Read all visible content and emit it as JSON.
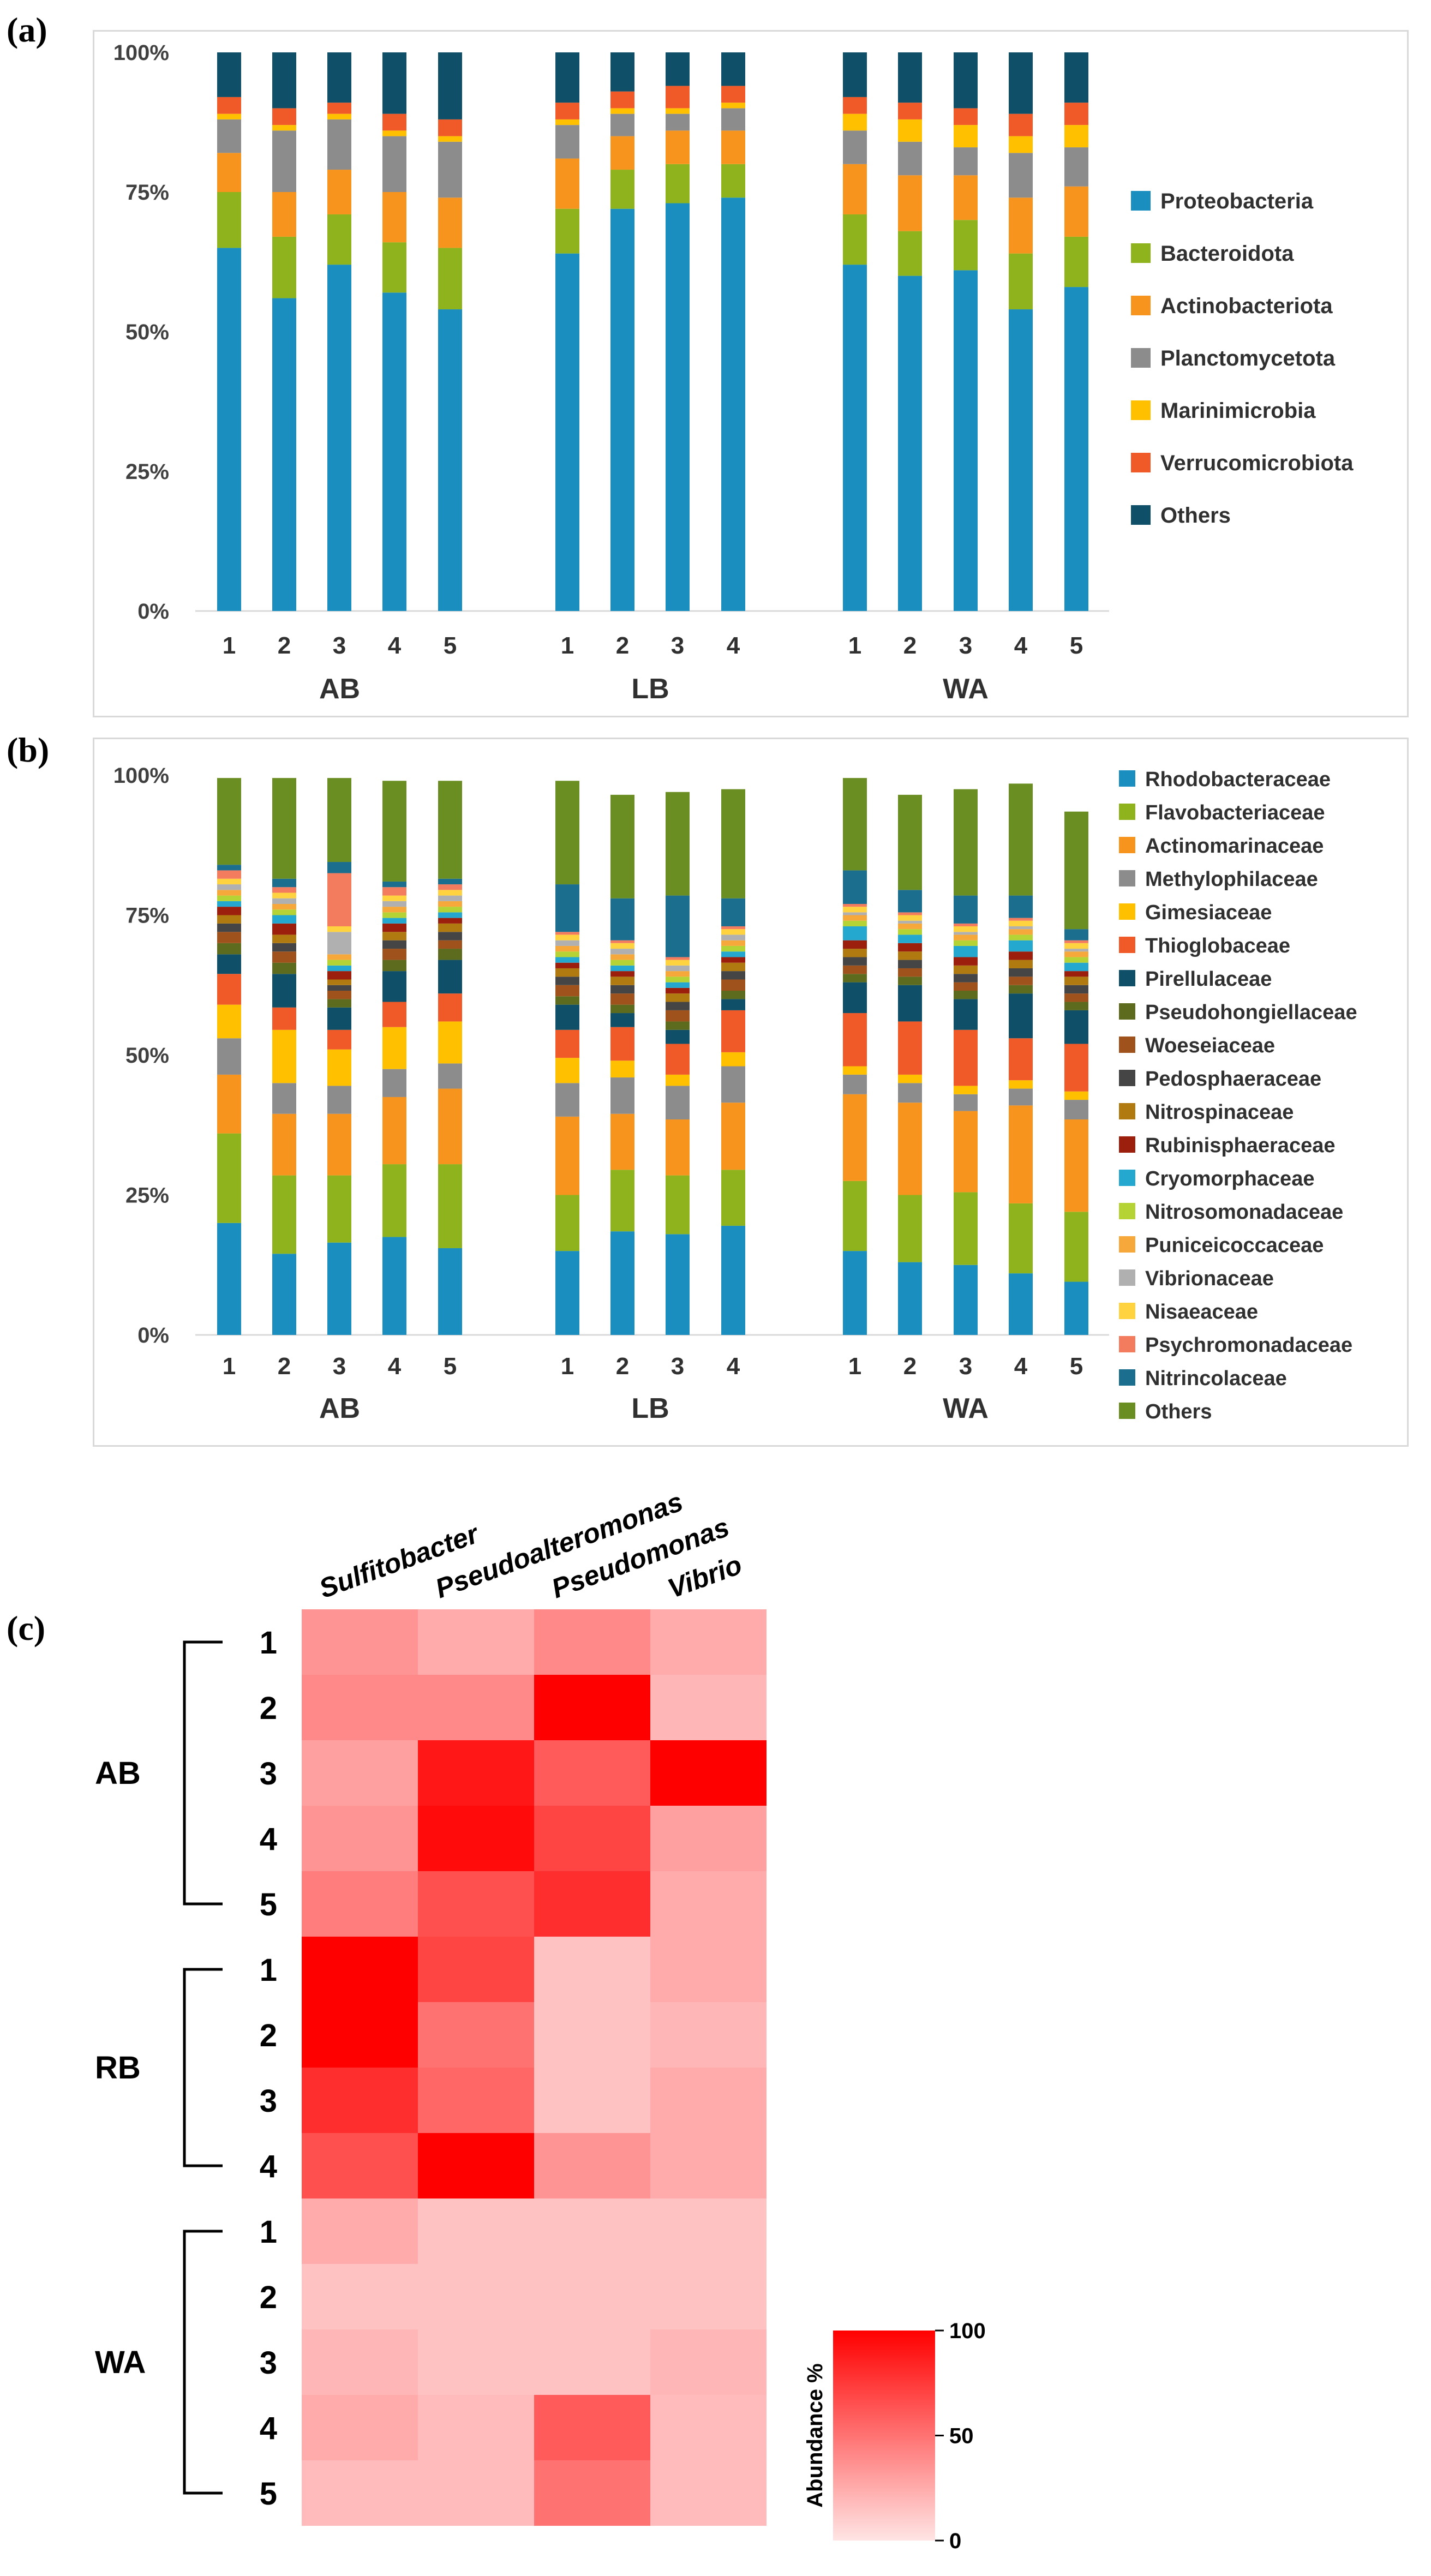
{
  "chart_data": [
    {
      "panel": "(a)",
      "type": "bar",
      "stacked": true,
      "ylim": [
        0,
        100
      ],
      "yticks": [
        "0%",
        "25%",
        "50%",
        "75%",
        "100%"
      ],
      "groups": [
        "AB",
        "LB",
        "WA"
      ],
      "categories": [
        {
          "group": "AB",
          "label": "1"
        },
        {
          "group": "AB",
          "label": "2"
        },
        {
          "group": "AB",
          "label": "3"
        },
        {
          "group": "AB",
          "label": "4"
        },
        {
          "group": "AB",
          "label": "5"
        },
        {
          "group": "LB",
          "label": "1"
        },
        {
          "group": "LB",
          "label": "2"
        },
        {
          "group": "LB",
          "label": "3"
        },
        {
          "group": "LB",
          "label": "4"
        },
        {
          "group": "WA",
          "label": "1"
        },
        {
          "group": "WA",
          "label": "2"
        },
        {
          "group": "WA",
          "label": "3"
        },
        {
          "group": "WA",
          "label": "4"
        },
        {
          "group": "WA",
          "label": "5"
        }
      ],
      "series": [
        {
          "name": "Proteobacteria",
          "color": "#1a8fbf",
          "values": [
            65,
            56,
            62,
            57,
            54,
            64,
            72,
            73,
            74,
            62,
            60,
            61,
            54,
            58
          ]
        },
        {
          "name": "Bacteroidota",
          "color": "#8fb31d",
          "values": [
            10,
            11,
            9,
            9,
            11,
            8,
            7,
            7,
            6,
            9,
            8,
            9,
            10,
            9
          ]
        },
        {
          "name": "Actinobacteriota",
          "color": "#f7941d",
          "values": [
            7,
            8,
            8,
            9,
            9,
            9,
            6,
            6,
            6,
            9,
            10,
            8,
            10,
            9
          ]
        },
        {
          "name": "Planctomycetota",
          "color": "#8c8c8c",
          "values": [
            6,
            11,
            9,
            10,
            10,
            6,
            4,
            3,
            4,
            6,
            6,
            5,
            8,
            7
          ]
        },
        {
          "name": "Marinimicrobia",
          "color": "#ffc000",
          "values": [
            1,
            1,
            1,
            1,
            1,
            1,
            1,
            1,
            1,
            3,
            4,
            4,
            3,
            4
          ]
        },
        {
          "name": "Verrucomicrobiota",
          "color": "#f05a28",
          "values": [
            3,
            3,
            2,
            3,
            3,
            3,
            3,
            4,
            3,
            3,
            3,
            3,
            4,
            4
          ]
        },
        {
          "name": "Others",
          "color": "#0f5068",
          "values": [
            8,
            10,
            9,
            11,
            12,
            9,
            7,
            6,
            6,
            8,
            9,
            10,
            11,
            9
          ]
        }
      ]
    },
    {
      "panel": "(b)",
      "type": "bar",
      "stacked": true,
      "ylim": [
        0,
        100
      ],
      "yticks": [
        "0%",
        "25%",
        "50%",
        "75%",
        "100%"
      ],
      "groups": [
        "AB",
        "LB",
        "WA"
      ],
      "categories": [
        {
          "group": "AB",
          "label": "1"
        },
        {
          "group": "AB",
          "label": "2"
        },
        {
          "group": "AB",
          "label": "3"
        },
        {
          "group": "AB",
          "label": "4"
        },
        {
          "group": "AB",
          "label": "5"
        },
        {
          "group": "LB",
          "label": "1"
        },
        {
          "group": "LB",
          "label": "2"
        },
        {
          "group": "LB",
          "label": "3"
        },
        {
          "group": "LB",
          "label": "4"
        },
        {
          "group": "WA",
          "label": "1"
        },
        {
          "group": "WA",
          "label": "2"
        },
        {
          "group": "WA",
          "label": "3"
        },
        {
          "group": "WA",
          "label": "4"
        },
        {
          "group": "WA",
          "label": "5"
        }
      ],
      "series": [
        {
          "name": "Rhodobacteraceae",
          "color": "#1a8fbf",
          "values": [
            20,
            14.5,
            16.5,
            17.5,
            15.5,
            15,
            18.5,
            18,
            19.5,
            15,
            13,
            12.5,
            11,
            9.5
          ]
        },
        {
          "name": "Flavobacteriaceae",
          "color": "#8fb31d",
          "values": [
            16,
            14,
            12,
            13,
            15,
            10,
            11,
            10.5,
            10,
            12.5,
            12,
            13,
            12.5,
            12.5
          ]
        },
        {
          "name": "Actinomarinaceae",
          "color": "#f7941d",
          "values": [
            10.5,
            11,
            11,
            12,
            13.5,
            14,
            10,
            10,
            12,
            15.5,
            16.5,
            14.5,
            17.5,
            16.5
          ]
        },
        {
          "name": "Methylophilaceae",
          "color": "#8c8c8c",
          "values": [
            6.5,
            5.5,
            5,
            5,
            4.5,
            6,
            6.5,
            6,
            6.5,
            3.5,
            3.5,
            3,
            3,
            3.5
          ]
        },
        {
          "name": "Gimesiaceae",
          "color": "#ffc000",
          "values": [
            6,
            9.5,
            6.5,
            7.5,
            7.5,
            4.5,
            3,
            2,
            2.5,
            1.5,
            1.5,
            1.5,
            1.5,
            1.5
          ]
        },
        {
          "name": "Thioglobaceae",
          "color": "#f05a28",
          "values": [
            5.5,
            4,
            3.5,
            4.5,
            5,
            5,
            6,
            5.5,
            7.5,
            9.5,
            9.5,
            10,
            7.5,
            8.5
          ]
        },
        {
          "name": "Pirellulaceae",
          "color": "#0f5068",
          "values": [
            3.5,
            6,
            4,
            5.5,
            6,
            4.5,
            2.5,
            2.5,
            2,
            5.5,
            6.5,
            5.5,
            8,
            6
          ]
        },
        {
          "name": "Pseudohongiellaceae",
          "color": "#5c6b1e",
          "values": [
            2,
            2,
            1.5,
            2,
            2,
            1.5,
            1.5,
            1.5,
            1.5,
            1.5,
            1.5,
            1.5,
            1.5,
            1.5
          ]
        },
        {
          "name": "Woeseiaceae",
          "color": "#a0521c",
          "values": [
            2,
            2,
            1.5,
            2,
            1.5,
            2,
            2,
            2,
            2,
            1.5,
            1.5,
            1.5,
            1.5,
            1.5
          ]
        },
        {
          "name": "Pedosphaeraceae",
          "color": "#454545",
          "values": [
            1.5,
            1.5,
            1,
            1.5,
            1.5,
            1.5,
            1.5,
            1.5,
            1.5,
            1.5,
            1.5,
            1.5,
            1.5,
            1.5
          ]
        },
        {
          "name": "Nitrospinaceae",
          "color": "#b07a10",
          "values": [
            1.5,
            1.5,
            1,
            1.5,
            1.5,
            1.5,
            1.5,
            1.5,
            1.5,
            1.5,
            1.5,
            1.5,
            1.5,
            1.5
          ]
        },
        {
          "name": "Rubinisphaeraceae",
          "color": "#9c1f0e",
          "values": [
            1.5,
            2,
            1.5,
            1.5,
            1,
            1,
            1,
            1,
            1,
            1.5,
            1.5,
            1.5,
            1.5,
            1
          ]
        },
        {
          "name": "Cryomorphaceae",
          "color": "#24a8d0",
          "values": [
            1,
            1.5,
            1,
            1,
            1,
            1,
            1,
            1,
            1,
            2.5,
            1.5,
            2,
            2,
            1.5
          ]
        },
        {
          "name": "Nitrosomonadaceae",
          "color": "#b5d334",
          "values": [
            1,
            1,
            1,
            1,
            1,
            1,
            1,
            1,
            1,
            1,
            1,
            1,
            1,
            1
          ]
        },
        {
          "name": "Puniceicoccaceae",
          "color": "#f6a83a",
          "values": [
            1,
            1,
            1,
            1,
            1,
            1,
            1,
            1,
            1,
            1,
            1,
            1,
            1,
            1
          ]
        },
        {
          "name": "Vibrionaceae",
          "color": "#b0b0b0",
          "values": [
            1,
            1,
            4,
            1,
            1,
            1,
            1,
            1,
            1,
            0.5,
            0.5,
            0.5,
            0.5,
            0.5
          ]
        },
        {
          "name": "Nisaeaceae",
          "color": "#ffd23f",
          "values": [
            1,
            1,
            1,
            1,
            1,
            1,
            1,
            1,
            1,
            1,
            1,
            1,
            1,
            1
          ]
        },
        {
          "name": "Psychromonadaceae",
          "color": "#f47c5e",
          "values": [
            1.5,
            1,
            9.5,
            1.5,
            1,
            0.5,
            0.5,
            0.5,
            0.5,
            0.5,
            0.5,
            0.5,
            0.5,
            0.5
          ]
        },
        {
          "name": "Nitrincolaceae",
          "color": "#1b6e8e",
          "values": [
            1,
            1.5,
            2,
            1,
            1,
            8.5,
            7.5,
            11,
            5,
            6,
            4,
            5,
            4,
            2
          ]
        },
        {
          "name": "Others",
          "color": "#6b8e23",
          "values": [
            15.5,
            18,
            15,
            18,
            17.5,
            18.5,
            18.5,
            18.5,
            19.5,
            16.5,
            17,
            19,
            20,
            21
          ]
        }
      ]
    },
    {
      "panel": "(c)",
      "type": "heatmap",
      "columns": [
        "Sulfitobacter",
        "Pseudoalteromonas",
        "Pseudomonas",
        "Vibrio"
      ],
      "groups": [
        {
          "name": "AB",
          "rows": [
            "1",
            "2",
            "3",
            "4",
            "5"
          ]
        },
        {
          "name": "RB",
          "rows": [
            "1",
            "2",
            "3",
            "4"
          ]
        },
        {
          "name": "WA",
          "rows": [
            "1",
            "2",
            "3",
            "4",
            "5"
          ]
        }
      ],
      "values": [
        [
          35,
          25,
          40,
          25
        ],
        [
          40,
          40,
          100,
          20
        ],
        [
          30,
          90,
          60,
          100
        ],
        [
          35,
          95,
          70,
          30
        ],
        [
          45,
          65,
          80,
          25
        ],
        [
          100,
          70,
          15,
          25
        ],
        [
          100,
          50,
          15,
          20
        ],
        [
          80,
          55,
          15,
          25
        ],
        [
          65,
          100,
          35,
          25
        ],
        [
          25,
          15,
          15,
          15
        ],
        [
          15,
          15,
          15,
          15
        ],
        [
          20,
          15,
          15,
          20
        ],
        [
          25,
          18,
          60,
          18
        ],
        [
          18,
          18,
          50,
          18
        ]
      ],
      "colorbar": {
        "label": "Abundance %",
        "min": 0,
        "mid": 50,
        "max": 100,
        "ticks": [
          "0",
          "50",
          "100"
        ],
        "color_low": "#ffe4e4",
        "color_high": "#ff0000"
      }
    }
  ]
}
